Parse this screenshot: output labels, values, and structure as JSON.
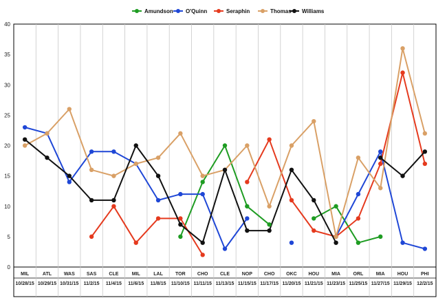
{
  "chart_data": {
    "type": "line",
    "ylim": [
      0,
      40
    ],
    "y_ticks": [
      0,
      5,
      10,
      15,
      20,
      25,
      30,
      35,
      40
    ],
    "grid": "vertical",
    "legend_position": "top",
    "categories": [
      {
        "team": "MIL",
        "date": "10/28/15"
      },
      {
        "team": "ATL",
        "date": "10/29/15"
      },
      {
        "team": "WAS",
        "date": "10/31/15"
      },
      {
        "team": "SAS",
        "date": "11/2/15"
      },
      {
        "team": "CLE",
        "date": "11/4/15"
      },
      {
        "team": "MIL",
        "date": "11/6/15"
      },
      {
        "team": "LAL",
        "date": "11/8/15"
      },
      {
        "team": "TOR",
        "date": "11/10/15"
      },
      {
        "team": "CHO",
        "date": "11/11/15"
      },
      {
        "team": "CLE",
        "date": "11/13/15"
      },
      {
        "team": "NOP",
        "date": "11/15/15"
      },
      {
        "team": "CHO",
        "date": "11/17/15"
      },
      {
        "team": "OKC",
        "date": "11/20/15"
      },
      {
        "team": "HOU",
        "date": "11/21/15"
      },
      {
        "team": "MIA",
        "date": "11/23/15"
      },
      {
        "team": "ORL",
        "date": "11/25/15"
      },
      {
        "team": "MIA",
        "date": "11/27/15"
      },
      {
        "team": "HOU",
        "date": "11/29/15"
      },
      {
        "team": "PHI",
        "date": "12/2/15"
      }
    ],
    "series": [
      {
        "name": "Amundson",
        "color": "#1e9c22",
        "values": [
          null,
          null,
          null,
          null,
          null,
          null,
          null,
          5,
          14,
          20,
          10,
          7,
          null,
          8,
          10,
          4,
          5,
          null,
          null
        ]
      },
      {
        "name": "O'Quinn",
        "color": "#1f47d6",
        "values": [
          23,
          22,
          14,
          19,
          19,
          17,
          11,
          12,
          12,
          3,
          8,
          null,
          4,
          null,
          5,
          12,
          19,
          4,
          3
        ]
      },
      {
        "name": "Seraphin",
        "color": "#e53a1e",
        "values": [
          null,
          null,
          null,
          5,
          10,
          4,
          8,
          8,
          2,
          null,
          14,
          21,
          11,
          6,
          5,
          8,
          17,
          32,
          17
        ]
      },
      {
        "name": "Thomas",
        "color": "#d9a066",
        "values": [
          20,
          22,
          26,
          16,
          15,
          17,
          18,
          22,
          15,
          16,
          20,
          10,
          20,
          24,
          5,
          18,
          13,
          36,
          22
        ]
      },
      {
        "name": "Williams",
        "color": "#111111",
        "values": [
          21,
          18,
          15,
          11,
          11,
          20,
          15,
          7,
          4,
          16,
          6,
          6,
          16,
          11,
          4,
          null,
          18,
          15,
          19
        ]
      }
    ]
  }
}
